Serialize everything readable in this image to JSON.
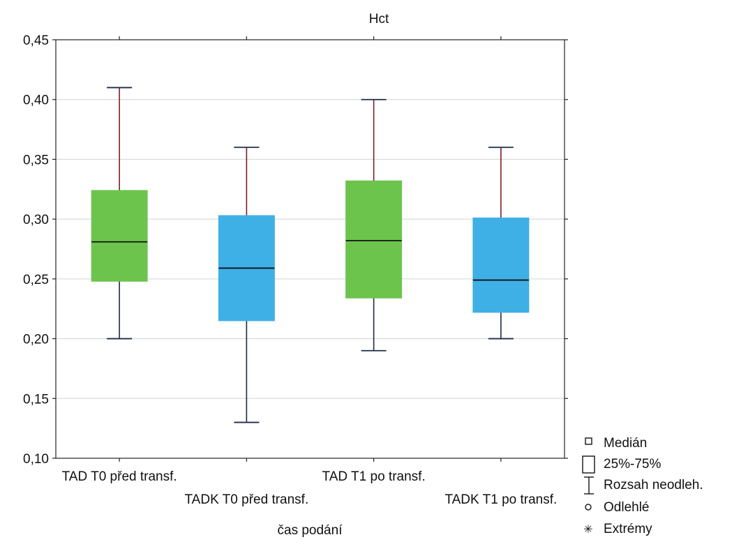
{
  "chart_data": {
    "type": "box",
    "title": "Hct",
    "xlabel": "čas podání",
    "ylabel": "",
    "ylim": [
      0.1,
      0.45
    ],
    "yticks": [
      "0,10",
      "0,15",
      "0,20",
      "0,25",
      "0,30",
      "0,35",
      "0,40",
      "0,45"
    ],
    "ytick_values": [
      0.1,
      0.15,
      0.2,
      0.25,
      0.3,
      0.35,
      0.4,
      0.45
    ],
    "grid": true,
    "categories": [
      "TAD T0 před transf.",
      "TADK T0 před transf.",
      "TAD T1 po transf.",
      "TADK T1 po transf."
    ],
    "boxes": [
      {
        "min": 0.2,
        "q1": 0.248,
        "median": 0.281,
        "q3": 0.324,
        "max": 0.41,
        "color": "#6cc44c"
      },
      {
        "min": 0.13,
        "q1": 0.215,
        "median": 0.259,
        "q3": 0.303,
        "max": 0.36,
        "color": "#3fb0e6"
      },
      {
        "min": 0.19,
        "q1": 0.234,
        "median": 0.282,
        "q3": 0.332,
        "max": 0.4,
        "color": "#6cc44c"
      },
      {
        "min": 0.2,
        "q1": 0.222,
        "median": 0.249,
        "q3": 0.301,
        "max": 0.36,
        "color": "#3fb0e6"
      }
    ],
    "legend": {
      "placement": "bottom-right",
      "items": [
        {
          "label": "Medián",
          "icon": "small-square-icon"
        },
        {
          "label": "25%-75%",
          "icon": "box-icon"
        },
        {
          "label": "Rozsah neodleh.",
          "icon": "whisker-icon"
        },
        {
          "label": "Odlehlé",
          "icon": "circle-icon"
        },
        {
          "label": "Extrémy",
          "icon": "asterisk-icon"
        }
      ]
    }
  }
}
